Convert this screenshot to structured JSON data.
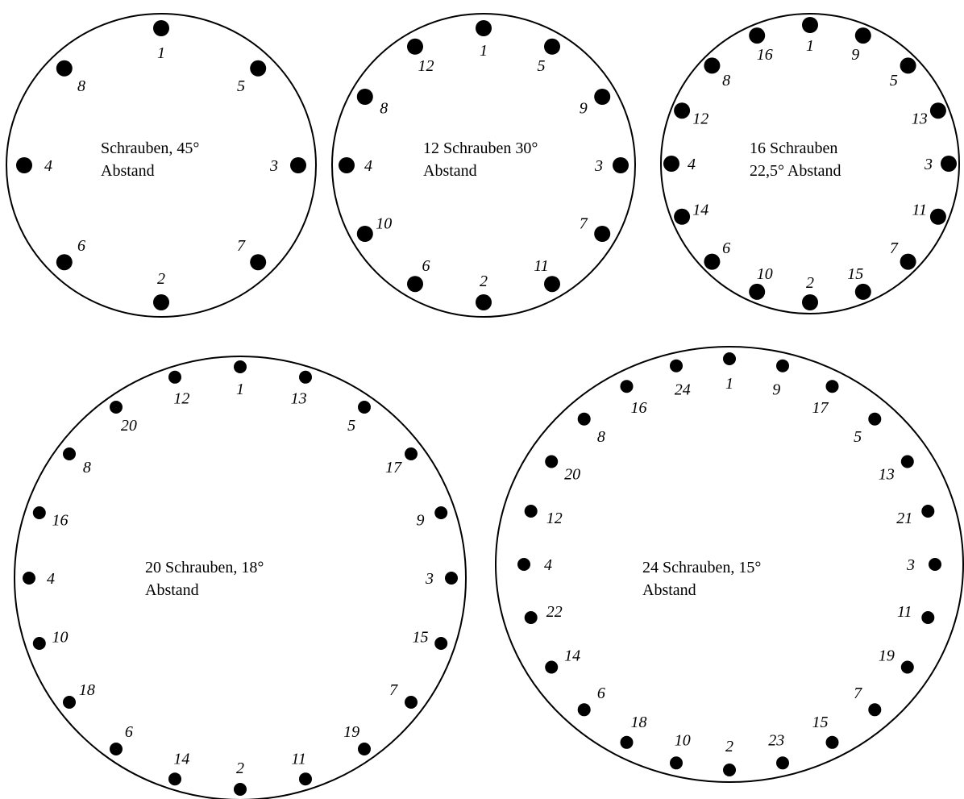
{
  "colors": {
    "stroke": "#000000",
    "background": "#ffffff"
  },
  "patterns": [
    {
      "id": "pattern-8",
      "caption": [
        "Schrauben, 45°",
        "Abstand"
      ],
      "sequence": [
        1,
        5,
        3,
        7,
        2,
        6,
        4,
        8
      ]
    },
    {
      "id": "pattern-12",
      "caption": [
        "12 Schrauben 30°",
        "Abstand"
      ],
      "sequence": [
        1,
        5,
        9,
        3,
        7,
        11,
        2,
        6,
        10,
        4,
        8,
        12
      ]
    },
    {
      "id": "pattern-16",
      "caption": [
        "16 Schrauben",
        "22,5° Abstand"
      ],
      "sequence": [
        1,
        9,
        5,
        13,
        3,
        11,
        7,
        15,
        2,
        10,
        6,
        14,
        4,
        12,
        8,
        16
      ]
    },
    {
      "id": "pattern-20",
      "caption": [
        "20 Schrauben, 18°",
        "Abstand"
      ],
      "sequence": [
        1,
        13,
        5,
        17,
        9,
        3,
        15,
        7,
        19,
        11,
        2,
        14,
        6,
        18,
        10,
        4,
        16,
        8,
        20,
        12
      ]
    },
    {
      "id": "pattern-24",
      "caption": [
        "24 Schrauben, 15°",
        "Abstand"
      ],
      "sequence": [
        1,
        9,
        17,
        5,
        13,
        21,
        3,
        11,
        19,
        7,
        15,
        23,
        2,
        10,
        18,
        6,
        14,
        22,
        4,
        12,
        20,
        8,
        16,
        24
      ]
    }
  ]
}
